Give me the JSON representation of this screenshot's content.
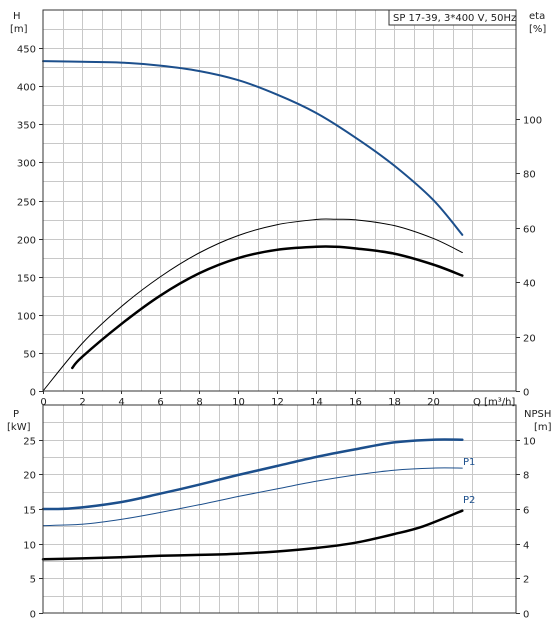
{
  "title": "SP 17-39, 3*400 V, 50Hz",
  "colors": {
    "blue": "#1c4f8c",
    "black": "#000000",
    "grid": "#c8c8c8"
  },
  "chart_data": [
    {
      "type": "line",
      "panel": "top",
      "title": "SP 17-39, 3*400 V, 50Hz",
      "left_axis": {
        "label": "H",
        "unit": "[m]",
        "ylim": [
          0,
          500
        ],
        "ticks": [
          "0",
          "50",
          "100",
          "150",
          "200",
          "250",
          "300",
          "350",
          "400",
          "450"
        ]
      },
      "right_axis": {
        "label": "eta",
        "unit": "[%]",
        "ylim": [
          0,
          140
        ],
        "ticks": [
          "0",
          "20",
          "40",
          "60",
          "80",
          "100"
        ]
      },
      "x_axis": {
        "label": "Q [m³/h]",
        "xlim": [
          0,
          22
        ],
        "ticks": [
          "0",
          "2",
          "4",
          "6",
          "8",
          "10",
          "12",
          "14",
          "16",
          "18",
          "20"
        ]
      },
      "grid": true,
      "series": [
        {
          "key": "H",
          "axis": "left",
          "color": "blue",
          "width": 2,
          "x": [
            0,
            2,
            4,
            6,
            8,
            10,
            12,
            14,
            16,
            18,
            20,
            21.5
          ],
          "y": [
            433,
            432,
            431,
            427,
            420,
            408,
            389,
            365,
            333,
            296,
            251,
            205
          ]
        },
        {
          "key": "eta_thin",
          "axis": "right",
          "color": "black",
          "width": 1,
          "x": [
            0,
            2,
            4,
            6,
            8,
            10,
            12,
            14,
            15,
            16,
            18,
            20,
            21.5
          ],
          "y": [
            0,
            17.4,
            30.9,
            41.9,
            50.7,
            57.1,
            61.1,
            63.0,
            63.1,
            62.9,
            60.8,
            56.1,
            50.9
          ]
        },
        {
          "key": "eta_thick",
          "axis": "right",
          "color": "black",
          "width": 2.5,
          "x": [
            1.5,
            2,
            4,
            6,
            8,
            10,
            12,
            14,
            15,
            16,
            18,
            20,
            21.5
          ],
          "y": [
            8.5,
            12.5,
            24.5,
            35.0,
            43.2,
            48.8,
            51.9,
            53.0,
            53.0,
            52.4,
            50.5,
            46.5,
            42.4
          ]
        }
      ]
    },
    {
      "type": "line",
      "panel": "bottom",
      "left_axis": {
        "label": "P",
        "unit": "[kW]",
        "ylim": [
          0,
          30
        ],
        "ticks": [
          "0",
          "5",
          "10",
          "15",
          "20",
          "25"
        ]
      },
      "right_axis": {
        "label": "NPSH",
        "unit": "[m]",
        "ylim": [
          0,
          12
        ],
        "ticks": [
          "0",
          "2",
          "4",
          "6",
          "8",
          "10"
        ]
      },
      "xlim": [
        0,
        22
      ],
      "grid": true,
      "series": [
        {
          "key": "P1",
          "name": "P1",
          "axis": "left",
          "color": "blue",
          "width": 2.5,
          "x": [
            0,
            1.5,
            4,
            6,
            8,
            10,
            12,
            14,
            16,
            18,
            20,
            21.5
          ],
          "y": [
            15.0,
            15.1,
            16.0,
            17.2,
            18.5,
            19.9,
            21.2,
            22.5,
            23.6,
            24.6,
            25.0,
            25.0
          ]
        },
        {
          "key": "P2",
          "name": "P2",
          "axis": "left",
          "color": "blue",
          "width": 1,
          "x": [
            0,
            2,
            4,
            6,
            8,
            10,
            12,
            14,
            16,
            18,
            20,
            21.5
          ],
          "y": [
            12.6,
            12.8,
            13.5,
            14.5,
            15.6,
            16.8,
            17.9,
            19.0,
            19.9,
            20.6,
            20.9,
            20.9
          ]
        },
        {
          "key": "NPSH",
          "axis": "right",
          "color": "black",
          "width": 2.5,
          "x": [
            0,
            2,
            4,
            6,
            8,
            10,
            12,
            14,
            16,
            18,
            19.5,
            21.5
          ],
          "y": [
            3.1,
            3.15,
            3.22,
            3.3,
            3.35,
            3.42,
            3.55,
            3.75,
            4.05,
            4.55,
            5.0,
            5.9
          ]
        }
      ],
      "series_labels": [
        "P1",
        "P2"
      ]
    }
  ]
}
